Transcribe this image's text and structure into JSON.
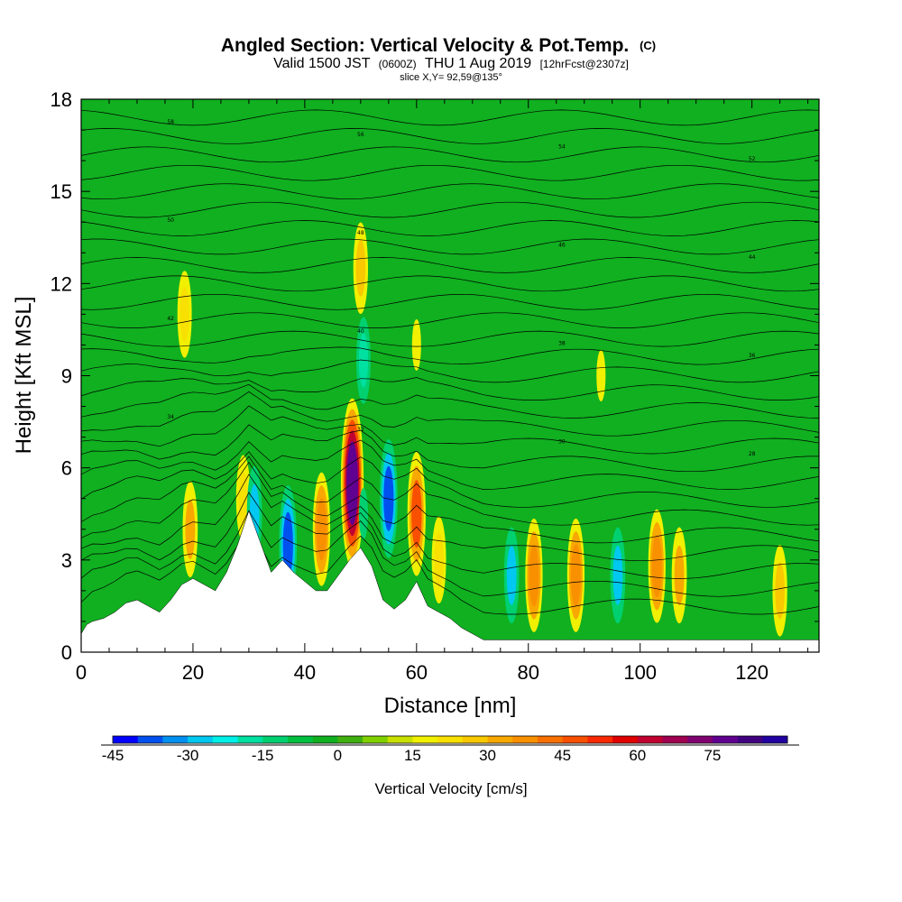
{
  "chart_data": {
    "type": "heatmap",
    "title": "Angled Section: Vertical Velocity & Pot.Temp.",
    "title_mark": "(C)",
    "subtitle_prefix": "Valid 1500 JST",
    "subtitle_utc": "(0600Z)",
    "subtitle_date": "THU 1 Aug 2019",
    "subtitle_fcst": "[12hrFcst@2307z]",
    "slice_label": "slice X,Y= 92,59@135°",
    "xlabel": "Distance [nm]",
    "ylabel": "Height [Kft MSL]",
    "xlim": [
      0,
      132
    ],
    "ylim": [
      0,
      18
    ],
    "x_ticks": [
      0,
      20,
      40,
      60,
      80,
      100,
      120
    ],
    "y_ticks": [
      0,
      3,
      6,
      9,
      12,
      15,
      18
    ],
    "colorbar": {
      "title": "Vertical Velocity [cm/s]",
      "min": -45,
      "max": 90,
      "step": 5,
      "labels": [
        -45,
        -30,
        -15,
        0,
        15,
        30,
        45,
        60,
        75
      ],
      "colors": [
        "#0000ff",
        "#0050f0",
        "#0090f0",
        "#00c8f0",
        "#00f0e8",
        "#00e0a0",
        "#00d070",
        "#00c040",
        "#10b020",
        "#40b010",
        "#80d000",
        "#c8e000",
        "#f0f000",
        "#f8e000",
        "#f8c800",
        "#f8a800",
        "#f89000",
        "#f87000",
        "#f85000",
        "#f82800",
        "#e00000",
        "#c00030",
        "#a00050",
        "#800070",
        "#600090",
        "#400080",
        "#2000a0"
      ]
    },
    "terrain_profile_kft": {
      "x": [
        0,
        1,
        2,
        4,
        6,
        8,
        10,
        12,
        14,
        16,
        18,
        20,
        22,
        24,
        26,
        28,
        30,
        32,
        34,
        36,
        38,
        40,
        42,
        44,
        46,
        48,
        50,
        52,
        54,
        56,
        58,
        60,
        62,
        64,
        66,
        68,
        70,
        72,
        80,
        90,
        100,
        110,
        120,
        132
      ],
      "y": [
        0.6,
        0.9,
        1.0,
        1.1,
        1.3,
        1.6,
        1.7,
        1.5,
        1.3,
        1.7,
        2.2,
        2.4,
        2.2,
        2.0,
        2.6,
        3.5,
        4.6,
        3.6,
        2.6,
        3.0,
        2.6,
        2.3,
        2.0,
        2.0,
        2.5,
        3.0,
        3.4,
        2.8,
        1.7,
        1.4,
        1.7,
        2.3,
        1.5,
        1.3,
        1.1,
        0.8,
        0.6,
        0.4,
        0.4,
        0.4,
        0.4,
        0.4,
        0.4,
        0.4
      ]
    },
    "velocity_features_cm_s": [
      {
        "x": 19.5,
        "z": 4.0,
        "value": 30
      },
      {
        "x": 29.0,
        "z": 5.0,
        "value": 20
      },
      {
        "x": 31.0,
        "z": 4.5,
        "value": -30
      },
      {
        "x": 37.0,
        "z": 3.5,
        "value": -40
      },
      {
        "x": 43.0,
        "z": 4.0,
        "value": 35
      },
      {
        "x": 48.5,
        "z": 5.5,
        "value": 75
      },
      {
        "x": 50.5,
        "z": 4.5,
        "value": -15
      },
      {
        "x": 55.0,
        "z": 5.0,
        "value": -40
      },
      {
        "x": 60.0,
        "z": 4.5,
        "value": 45
      },
      {
        "x": 64.0,
        "z": 3.0,
        "value": 20
      },
      {
        "x": 77.0,
        "z": 2.5,
        "value": -30
      },
      {
        "x": 81.0,
        "z": 2.5,
        "value": 35
      },
      {
        "x": 88.5,
        "z": 2.5,
        "value": 35
      },
      {
        "x": 96.0,
        "z": 2.5,
        "value": -30
      },
      {
        "x": 103.0,
        "z": 2.8,
        "value": 35
      },
      {
        "x": 107.0,
        "z": 2.5,
        "value": 30
      },
      {
        "x": 125.0,
        "z": 2.0,
        "value": 25
      },
      {
        "x": 18.5,
        "z": 11.0,
        "value": 20
      },
      {
        "x": 50.0,
        "z": 12.5,
        "value": 25
      },
      {
        "x": 50.5,
        "z": 9.5,
        "value": -20
      },
      {
        "x": 60.0,
        "z": 10.0,
        "value": 15
      },
      {
        "x": 93.0,
        "z": 9.0,
        "value": 15
      }
    ],
    "isentrope_count": 28,
    "isentrope_labels": [
      "58",
      "56",
      "54",
      "52",
      "50",
      "48",
      "46",
      "44",
      "42",
      "40",
      "38",
      "36",
      "34",
      "32",
      "30",
      "28"
    ]
  }
}
